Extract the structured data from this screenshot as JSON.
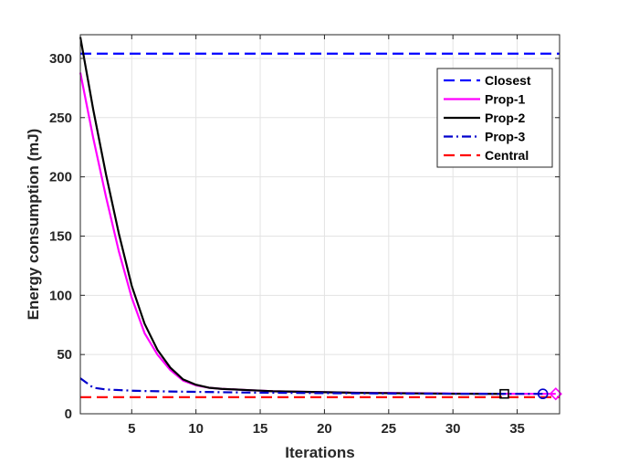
{
  "chart_data": {
    "type": "line",
    "title": "",
    "xlabel": "Iterations",
    "ylabel": "Energy consumption (mJ)",
    "xlim": [
      1,
      38.3
    ],
    "ylim": [
      0,
      320
    ],
    "xticks": [
      5,
      10,
      15,
      20,
      25,
      30,
      35
    ],
    "yticks": [
      0,
      50,
      100,
      150,
      200,
      250,
      300
    ],
    "grid": true,
    "legend_position": "top-right",
    "series": [
      {
        "name": "Closest",
        "color": "#0000ff",
        "style": "dashed",
        "x": [
          1,
          38.3
        ],
        "y": [
          304,
          304
        ]
      },
      {
        "name": "Prop-1",
        "color": "#ff00ff",
        "style": "solid",
        "x": [
          1,
          2,
          3,
          4,
          5,
          6,
          7,
          8,
          9,
          10,
          11,
          12,
          13,
          14,
          15,
          16,
          17,
          18,
          19,
          20,
          21,
          22,
          23,
          24,
          25,
          26,
          27,
          28,
          29,
          30,
          31,
          32,
          33,
          34,
          35,
          36,
          37,
          38
        ],
        "y": [
          288,
          233,
          183,
          137,
          98,
          68,
          50,
          37,
          28,
          24,
          22,
          21,
          20.5,
          20,
          19.5,
          19,
          18.8,
          18.6,
          18.4,
          18.2,
          18,
          17.9,
          17.8,
          17.7,
          17.6,
          17.5,
          17.4,
          17.3,
          17.2,
          17.1,
          17,
          17,
          16.9,
          16.9,
          16.8,
          16.8,
          16.8,
          16.8
        ],
        "end_marker": "diamond",
        "end_marker_point": [
          38,
          16.8
        ]
      },
      {
        "name": "Prop-2",
        "color": "#000000",
        "style": "solid",
        "x": [
          1,
          2,
          3,
          4,
          5,
          6,
          7,
          8,
          9,
          10,
          11,
          12,
          13,
          14,
          15,
          16,
          17,
          18,
          19,
          20,
          21,
          22,
          23,
          24,
          25,
          26,
          27,
          28,
          29,
          30,
          31,
          32,
          33,
          34
        ],
        "y": [
          318,
          257,
          202,
          152,
          108,
          76,
          54,
          39,
          29,
          24.5,
          22,
          21,
          20.5,
          20,
          19.5,
          19,
          18.8,
          18.6,
          18.4,
          18.2,
          18,
          17.8,
          17.6,
          17.5,
          17.4,
          17.3,
          17.2,
          17.1,
          17,
          16.9,
          16.9,
          16.8,
          16.8,
          16.8
        ],
        "end_marker": "square",
        "end_marker_point": [
          34,
          16.8
        ]
      },
      {
        "name": "Prop-3",
        "color": "#0000cc",
        "style": "dashdot",
        "x": [
          1,
          2,
          3,
          4,
          5,
          6,
          8,
          10,
          12,
          15,
          20,
          25,
          30,
          35,
          37
        ],
        "y": [
          30,
          22,
          20.5,
          20,
          19.5,
          19.2,
          18.8,
          18.5,
          18.2,
          17.8,
          17.4,
          17.1,
          16.9,
          16.8,
          16.8
        ],
        "end_marker": "circle",
        "end_marker_point": [
          37,
          16.8
        ]
      },
      {
        "name": "Central",
        "color": "#ff0000",
        "style": "dashed",
        "x": [
          1,
          38.3
        ],
        "y": [
          14,
          14
        ]
      }
    ]
  }
}
